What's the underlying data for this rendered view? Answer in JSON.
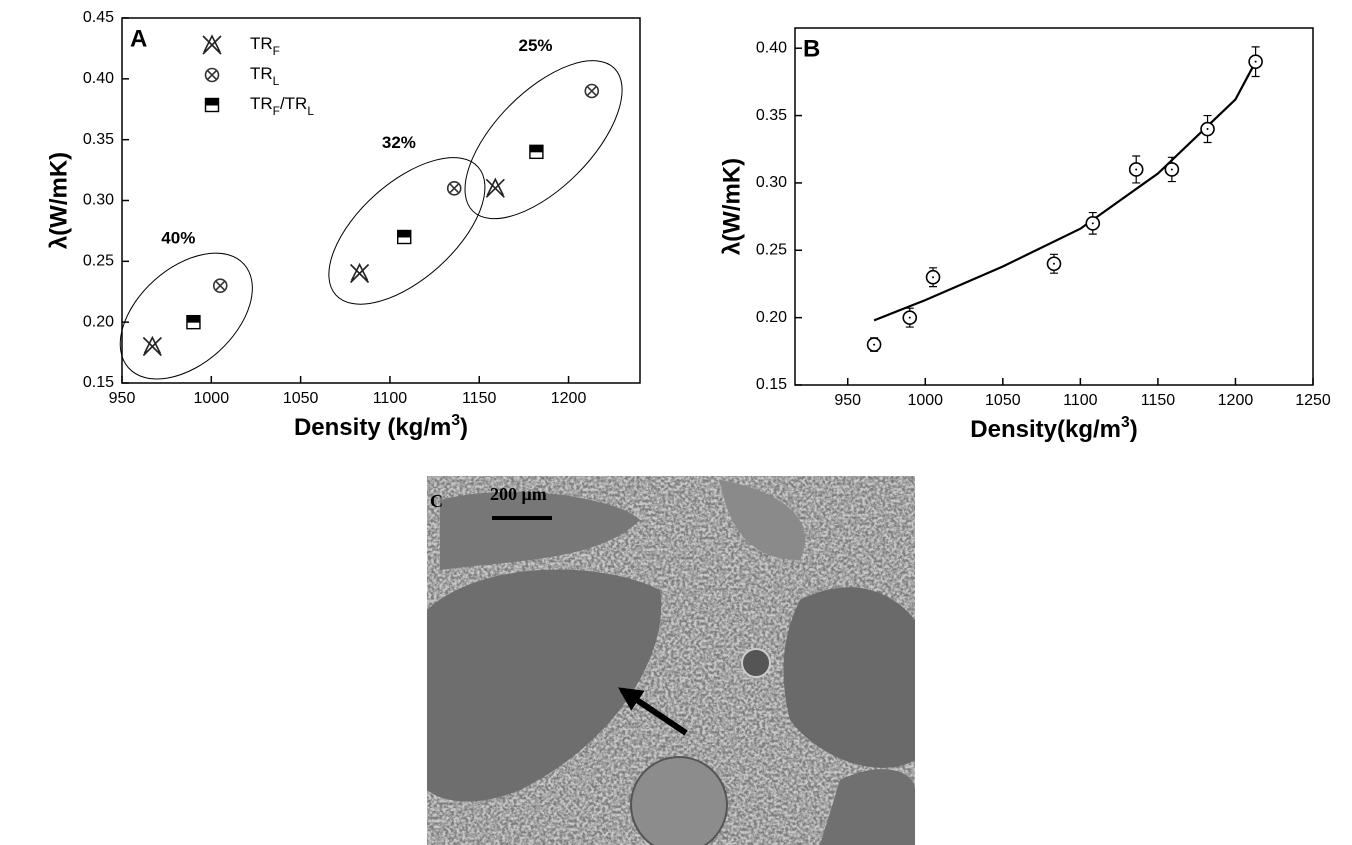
{
  "chart_data": [
    {
      "type": "scatter",
      "panel": "A",
      "x_label": "Density (kg/m3)",
      "y_label": "λ(W/mK)",
      "xlim": [
        950,
        1240
      ],
      "xticks": [
        950,
        1000,
        1050,
        1100,
        1150,
        1200
      ],
      "ylim": [
        0.15,
        0.45
      ],
      "yticks": [
        0.15,
        {
          "value": 0.2,
          "label": "0.20"
        },
        0.25,
        {
          "value": 0.3,
          "label": "0.30"
        },
        0.35,
        {
          "value": 0.4,
          "label": "0.40"
        },
        0.45
      ],
      "legend": "upper left",
      "series": [
        {
          "name": "TRF",
          "marker": "x-triangle",
          "color": "#222222",
          "x": [
            967,
            1083,
            1159
          ],
          "values": [
            0.18,
            0.24,
            0.31
          ]
        },
        {
          "name": "TRL",
          "marker": "circle-x",
          "color": "#333333",
          "x": [
            1005,
            1136,
            1213
          ],
          "values": [
            0.23,
            0.31,
            0.39
          ]
        },
        {
          "name": "TRF/TRL",
          "marker": "half-square",
          "color": "#000000",
          "x": [
            990,
            1108,
            1182
          ],
          "values": [
            0.2,
            0.27,
            0.34
          ]
        }
      ],
      "annotations": [
        "40%",
        "32%",
        "25%"
      ]
    },
    {
      "type": "scatter",
      "panel": "B",
      "x_label": "Density(kg/m3)",
      "y_label": "λ(W/mK)",
      "xlim": [
        916,
        1250
      ],
      "xticks": [
        950,
        1000,
        1050,
        1100,
        1150,
        1200,
        1250
      ],
      "ylim": [
        0.15,
        0.415
      ],
      "yticks": [
        0.15,
        {
          "value": 0.2,
          "label": "0.20"
        },
        0.25,
        {
          "value": 0.3,
          "label": "0.30"
        },
        0.35,
        {
          "value": 0.4,
          "label": "0.40"
        }
      ],
      "series": [
        {
          "marker": "circle-dot",
          "color": "#000000",
          "x": [
            967,
            990,
            1005,
            1083,
            1108,
            1136,
            1159,
            1182,
            1213
          ],
          "values": [
            0.18,
            0.2,
            0.23,
            0.24,
            0.27,
            0.31,
            0.31,
            0.34,
            0.39
          ],
          "errors": [
            0.005,
            0.007,
            0.007,
            0.007,
            0.008,
            0.01,
            0.009,
            0.01,
            0.011
          ]
        }
      ],
      "fit": {
        "x": [
          967,
          1000,
          1050,
          1100,
          1150,
          1200,
          1213
        ],
        "values": [
          0.198,
          0.213,
          0.238,
          0.266,
          0.307,
          0.362,
          0.39
        ]
      }
    }
  ],
  "image": {
    "label": "C",
    "scale_bar": "200 μm"
  }
}
